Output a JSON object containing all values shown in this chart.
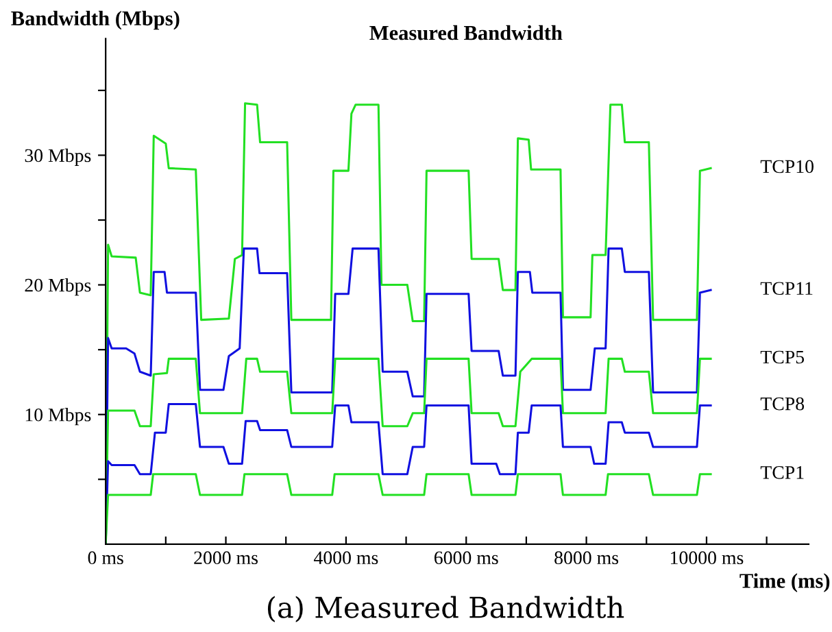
{
  "chart_data": {
    "type": "line",
    "title": "Measured Bandwidth",
    "xlabel": "Time (ms)",
    "ylabel": "Bandwidth (Mbps)",
    "annotations": [
      "(a) Measured Bandwidth"
    ],
    "xlim": [
      0,
      11700
    ],
    "ylim": [
      0,
      39
    ],
    "xticks": [
      {
        "value": 0,
        "label": "0 ms"
      },
      {
        "value": 1000,
        "label": null
      },
      {
        "value": 2000,
        "label": "2000 ms"
      },
      {
        "value": 3000,
        "label": null
      },
      {
        "value": 4000,
        "label": "4000 ms"
      },
      {
        "value": 5000,
        "label": null
      },
      {
        "value": 6000,
        "label": "6000 ms"
      },
      {
        "value": 7000,
        "label": null
      },
      {
        "value": 8000,
        "label": "8000 ms"
      },
      {
        "value": 9000,
        "label": null
      },
      {
        "value": 10000,
        "label": "10000 ms"
      },
      {
        "value": 11000,
        "label": null
      }
    ],
    "yticks": [
      {
        "value": 5,
        "label": null
      },
      {
        "value": 10,
        "label": "10 Mbps"
      },
      {
        "value": 15,
        "label": null
      },
      {
        "value": 20,
        "label": "20 Mbps"
      },
      {
        "value": 25,
        "label": null
      },
      {
        "value": 30,
        "label": "30 Mbps"
      },
      {
        "value": 35,
        "label": null
      }
    ],
    "grid": false,
    "legend": false,
    "marker": "none",
    "line_style": "solid",
    "series": [
      {
        "name": "TCP10",
        "color": "#22e022",
        "x": [
          0,
          40,
          100,
          500,
          570,
          750,
          800,
          1000,
          1050,
          1500,
          1590,
          2050,
          2150,
          2270,
          2320,
          2520,
          2570,
          3020,
          3090,
          3750,
          3790,
          4040,
          4090,
          4160,
          4540,
          4590,
          5020,
          5110,
          5300,
          5340,
          6040,
          6090,
          6540,
          6610,
          6820,
          6860,
          7040,
          7080,
          7570,
          7610,
          8070,
          8100,
          8320,
          8400,
          8590,
          8640,
          9040,
          9110,
          9840,
          9890,
          10070
        ],
        "values": [
          0,
          23.1,
          22.2,
          22.1,
          19.4,
          19.2,
          31.5,
          30.9,
          29.0,
          28.9,
          17.3,
          17.4,
          22.0,
          22.3,
          34.0,
          33.9,
          31.0,
          31.0,
          17.3,
          17.3,
          28.8,
          28.8,
          33.2,
          33.9,
          33.9,
          20.0,
          20.0,
          17.2,
          17.2,
          28.8,
          28.8,
          22.0,
          22.0,
          19.6,
          19.6,
          31.3,
          31.2,
          28.9,
          28.9,
          17.5,
          17.5,
          22.3,
          22.3,
          33.9,
          33.9,
          31.0,
          31.0,
          17.3,
          17.3,
          28.8,
          29.0
        ]
      },
      {
        "name": "TCP11",
        "color": "#1010e0",
        "x": [
          0,
          40,
          100,
          340,
          480,
          570,
          750,
          800,
          980,
          1020,
          1500,
          1570,
          1960,
          2050,
          2230,
          2300,
          2520,
          2560,
          3020,
          3090,
          3770,
          3820,
          4040,
          4110,
          4540,
          4610,
          5020,
          5110,
          5300,
          5340,
          6040,
          6090,
          6540,
          6610,
          6820,
          6860,
          7060,
          7100,
          7570,
          7610,
          8070,
          8140,
          8320,
          8370,
          8590,
          8640,
          9040,
          9110,
          9840,
          9890,
          10070
        ],
        "values": [
          0,
          15.9,
          15.1,
          15.1,
          14.7,
          13.3,
          13.0,
          21.0,
          21.0,
          19.4,
          19.4,
          11.9,
          11.9,
          14.5,
          15.1,
          22.8,
          22.8,
          20.9,
          20.9,
          11.7,
          11.7,
          19.3,
          19.3,
          22.8,
          22.8,
          13.3,
          13.3,
          11.4,
          11.4,
          19.3,
          19.3,
          14.9,
          14.9,
          13.0,
          13.0,
          21.0,
          21.0,
          19.4,
          19.4,
          11.9,
          11.9,
          15.1,
          15.1,
          22.8,
          22.8,
          21.0,
          21.0,
          11.7,
          11.7,
          19.4,
          19.6
        ]
      },
      {
        "name": "TCP5",
        "color": "#22e022",
        "x": [
          0,
          40,
          480,
          570,
          750,
          800,
          1020,
          1050,
          1500,
          1570,
          2270,
          2340,
          2520,
          2570,
          3020,
          3090,
          3770,
          3820,
          4540,
          4610,
          5020,
          5110,
          5300,
          5340,
          6040,
          6090,
          6540,
          6610,
          6820,
          6900,
          7090,
          7570,
          7610,
          8320,
          8370,
          8590,
          8640,
          9040,
          9110,
          9840,
          9890,
          10070
        ],
        "values": [
          0,
          10.3,
          10.3,
          9.1,
          9.1,
          13.1,
          13.2,
          14.3,
          14.3,
          10.1,
          10.1,
          14.3,
          14.3,
          13.3,
          13.3,
          10.1,
          10.1,
          14.3,
          14.3,
          9.1,
          9.1,
          10.1,
          10.1,
          14.3,
          14.3,
          10.1,
          10.1,
          9.1,
          9.1,
          13.3,
          14.3,
          14.3,
          10.1,
          10.1,
          14.3,
          14.3,
          13.3,
          13.3,
          10.1,
          10.1,
          14.3,
          14.3
        ]
      },
      {
        "name": "TCP8",
        "color": "#1010e0",
        "x": [
          0,
          40,
          100,
          480,
          570,
          750,
          820,
          1000,
          1050,
          1500,
          1570,
          1960,
          2050,
          2270,
          2330,
          2520,
          2570,
          3020,
          3090,
          3770,
          3820,
          4040,
          4090,
          4540,
          4610,
          5020,
          5110,
          5300,
          5340,
          6040,
          6090,
          6500,
          6560,
          6820,
          6860,
          7040,
          7090,
          7570,
          7610,
          8070,
          8130,
          8320,
          8370,
          8590,
          8640,
          9040,
          9110,
          9840,
          9890,
          10070
        ],
        "values": [
          0,
          6.4,
          6.1,
          6.1,
          5.4,
          5.4,
          8.6,
          8.6,
          10.8,
          10.8,
          7.5,
          7.5,
          6.2,
          6.2,
          9.5,
          9.5,
          8.8,
          8.8,
          7.5,
          7.5,
          10.7,
          10.7,
          9.4,
          9.4,
          5.4,
          5.4,
          7.5,
          7.5,
          10.7,
          10.7,
          6.2,
          6.2,
          5.4,
          5.4,
          8.6,
          8.6,
          10.7,
          10.7,
          7.5,
          7.5,
          6.2,
          6.2,
          9.4,
          9.4,
          8.6,
          8.6,
          7.5,
          7.5,
          10.7,
          10.7
        ]
      },
      {
        "name": "TCP1",
        "color": "#22e022",
        "x": [
          0,
          40,
          750,
          790,
          1500,
          1570,
          2270,
          2310,
          3020,
          3090,
          3770,
          3810,
          4540,
          4610,
          5300,
          5340,
          6040,
          6090,
          6820,
          6860,
          7570,
          7610,
          8320,
          8360,
          9040,
          9110,
          9840,
          9890,
          10070
        ],
        "values": [
          0,
          3.8,
          3.8,
          5.4,
          5.4,
          3.8,
          3.8,
          5.4,
          5.4,
          3.8,
          3.8,
          5.4,
          5.4,
          3.8,
          3.8,
          5.4,
          5.4,
          3.8,
          3.8,
          5.4,
          5.4,
          3.8,
          3.8,
          5.4,
          5.4,
          3.8,
          3.8,
          5.4,
          5.4
        ]
      }
    ]
  }
}
